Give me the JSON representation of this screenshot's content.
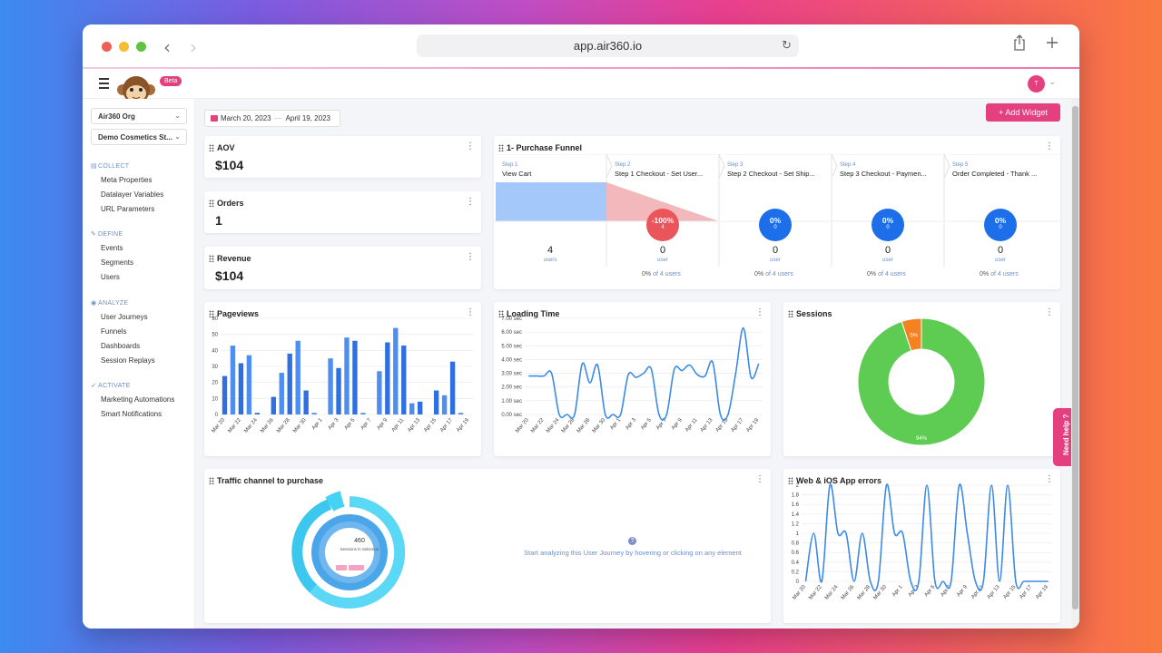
{
  "browser": {
    "url": "app.air360.io"
  },
  "header": {
    "beta_label": "Beta",
    "avatar_initial": "T"
  },
  "sidebar": {
    "org_select": "Air360 Org",
    "site_select": "Demo Cosmetics St...",
    "sections": [
      {
        "label": "COLLECT",
        "items": [
          "Meta Properties",
          "Datalayer Variables",
          "URL Parameters"
        ]
      },
      {
        "label": "DEFINE",
        "items": [
          "Events",
          "Segments",
          "Users"
        ]
      },
      {
        "label": "ANALYZE",
        "items": [
          "User Journeys",
          "Funnels",
          "Dashboards",
          "Session Replays"
        ]
      },
      {
        "label": "ACTIVATE",
        "items": [
          "Marketing Automations",
          "Smart Notifications"
        ]
      }
    ]
  },
  "toolbar": {
    "date_from": "March 20, 2023",
    "date_to": "April 19, 2023",
    "add_widget": "Add Widget"
  },
  "kpis": {
    "aov": {
      "title": "AOV",
      "value": "$104"
    },
    "orders": {
      "title": "Orders",
      "value": "1"
    },
    "revenue": {
      "title": "Revenue",
      "value": "$104"
    }
  },
  "funnel": {
    "title": "1- Purchase Funnel",
    "steps": [
      {
        "step": "Step 1",
        "name": "View Cart",
        "count": "4",
        "unit": "users",
        "badge": "",
        "badge_sub": "",
        "pct": "",
        "pct_of": ""
      },
      {
        "step": "Step 2",
        "name": "Step 1 Checkout - Set User...",
        "count": "0",
        "unit": "user",
        "badge": "-100%",
        "badge_sub": "4",
        "pct": "0%",
        "pct_of": " of 4 users"
      },
      {
        "step": "Step 3",
        "name": "Step 2 Checkout - Set Ship...",
        "count": "0",
        "unit": "user",
        "badge": "0%",
        "badge_sub": "0",
        "pct": "0%",
        "pct_of": " of 4 users"
      },
      {
        "step": "Step 4",
        "name": "Step 3 Checkout - Paymen...",
        "count": "0",
        "unit": "user",
        "badge": "0%",
        "badge_sub": "0",
        "pct": "0%",
        "pct_of": " of 4 users"
      },
      {
        "step": "Step 5",
        "name": "Order Completed - Thank ...",
        "count": "0",
        "unit": "user",
        "badge": "0%",
        "badge_sub": "0",
        "pct": "0%",
        "pct_of": " of 4 users"
      }
    ]
  },
  "widgets": {
    "pageviews_title": "Pageviews",
    "loading_title": "Loading Time",
    "sessions_title": "Sessions",
    "traffic_title": "Traffic channel to purchase",
    "errors_title": "Web & iOS App errors",
    "traffic_center_value": "460",
    "traffic_center_label": "Sessions in Selection",
    "traffic_hint": "Start analyzing this User Journey by hovering or clicking on any element",
    "help": "Need help ?"
  },
  "colors": {
    "accent": "#e4407f",
    "bar": "#2f6fe0",
    "bar_light": "#4d8ef0",
    "line": "#3b8ae8",
    "donut_green": "#5ecb52",
    "donut_orange": "#f58220"
  },
  "chart_data": [
    {
      "type": "bar",
      "title": "Pageviews",
      "categories": [
        "Mar 20",
        "Mar 21",
        "Mar 22",
        "Mar 23",
        "Mar 24",
        "Mar 25",
        "Mar 26",
        "Mar 27",
        "Mar 28",
        "Mar 29",
        "Mar 30",
        "Mar 31",
        "Apr 1",
        "Apr 2",
        "Apr 3",
        "Apr 4",
        "Apr 5",
        "Apr 6",
        "Apr 7",
        "Apr 8",
        "Apr 9",
        "Apr 10",
        "Apr 11",
        "Apr 12",
        "Apr 13",
        "Apr 14",
        "Apr 15",
        "Apr 16",
        "Apr 17",
        "Apr 18",
        "Apr 19"
      ],
      "tick_labels": [
        "Mar 20",
        "Mar 22",
        "Mar 24",
        "Mar 26",
        "Mar 28",
        "Mar 30",
        "Apr 1",
        "Apr 3",
        "Apr 5",
        "Apr 7",
        "Apr 9",
        "Apr 11",
        "Apr 13",
        "Apr 15",
        "Apr 17",
        "Apr 19"
      ],
      "values": [
        24,
        43,
        32,
        37,
        1,
        0,
        11,
        26,
        38,
        46,
        15,
        1,
        0,
        35,
        29,
        48,
        46,
        1,
        0,
        27,
        45,
        54,
        43,
        7,
        8,
        0,
        15,
        12,
        33,
        1,
        0
      ],
      "ylim": [
        0,
        60
      ],
      "yticks": [
        0,
        10,
        20,
        30,
        40,
        50,
        60
      ]
    },
    {
      "type": "line",
      "title": "Loading Time",
      "x": [
        "Mar 20",
        "Mar 21",
        "Mar 22",
        "Mar 23",
        "Mar 24",
        "Mar 25",
        "Mar 26",
        "Mar 27",
        "Mar 28",
        "Mar 29",
        "Mar 30",
        "Mar 31",
        "Apr 1",
        "Apr 2",
        "Apr 3",
        "Apr 4",
        "Apr 5",
        "Apr 6",
        "Apr 7",
        "Apr 8",
        "Apr 9",
        "Apr 10",
        "Apr 11",
        "Apr 12",
        "Apr 13",
        "Apr 14",
        "Apr 15",
        "Apr 16",
        "Apr 17",
        "Apr 18",
        "Apr 19"
      ],
      "tick_labels": [
        "Mar 20",
        "Mar 22",
        "Mar 24",
        "Mar 26",
        "Mar 28",
        "Mar 30",
        "Apr 1",
        "Apr 3",
        "Apr 5",
        "Apr 7",
        "Apr 9",
        "Apr 11",
        "Apr 13",
        "Apr 15",
        "Apr 17",
        "Apr 19"
      ],
      "values": [
        2.8,
        2.8,
        2.8,
        3.0,
        0,
        0,
        0,
        3.7,
        2.3,
        3.6,
        0,
        0,
        0,
        2.9,
        2.7,
        3.0,
        3.3,
        0,
        0,
        3.3,
        3.2,
        3.6,
        2.9,
        2.8,
        3.8,
        0,
        0,
        3.0,
        6.3,
        2.7,
        3.7
      ],
      "ylim": [
        0,
        7
      ],
      "yticks": [
        "0.00 sec",
        "1.00 sec",
        "2.00 sec",
        "3.00 sec",
        "4.00 sec",
        "5.00 sec",
        "6.00 sec",
        "7.00 sec"
      ]
    },
    {
      "type": "pie",
      "title": "Sessions",
      "slices": [
        {
          "label": "94%",
          "value": 94,
          "color": "#5ecb52"
        },
        {
          "label": "5%",
          "value": 5,
          "color": "#f58220"
        }
      ]
    },
    {
      "type": "line",
      "title": "Web & iOS App errors",
      "x": [
        "Mar 20",
        "Mar 21",
        "Mar 22",
        "Mar 23",
        "Mar 24",
        "Mar 25",
        "Mar 26",
        "Mar 27",
        "Mar 28",
        "Mar 29",
        "Mar 30",
        "Mar 31",
        "Apr 1",
        "Apr 2",
        "Apr 3",
        "Apr 4",
        "Apr 5",
        "Apr 6",
        "Apr 7",
        "Apr 8",
        "Apr 9",
        "Apr 10",
        "Apr 11",
        "Apr 12",
        "Apr 13",
        "Apr 14",
        "Apr 15",
        "Apr 16",
        "Apr 17",
        "Apr 18",
        "Apr 19"
      ],
      "tick_labels": [
        "Mar 20",
        "Mar 22",
        "Mar 24",
        "Mar 26",
        "Mar 28",
        "Mar 30",
        "Apr 1",
        "Apr 3",
        "Apr 5",
        "Apr 7",
        "Apr 9",
        "Apr 11",
        "Apr 13",
        "Apr 15",
        "Apr 17",
        "Apr 19"
      ],
      "values": [
        0,
        1,
        0,
        2,
        1,
        1,
        0,
        1,
        0,
        0,
        2,
        1,
        1,
        0,
        0,
        2,
        0,
        0,
        0,
        2,
        1,
        0,
        0,
        2,
        0,
        2,
        0,
        0,
        0,
        0,
        0
      ],
      "ylim": [
        0,
        2
      ],
      "yticks": [
        "0",
        "0.2",
        "0.4",
        "0.6",
        "0.8",
        "1",
        "1.2",
        "1.4",
        "1.6",
        "1.8",
        "2"
      ]
    }
  ]
}
